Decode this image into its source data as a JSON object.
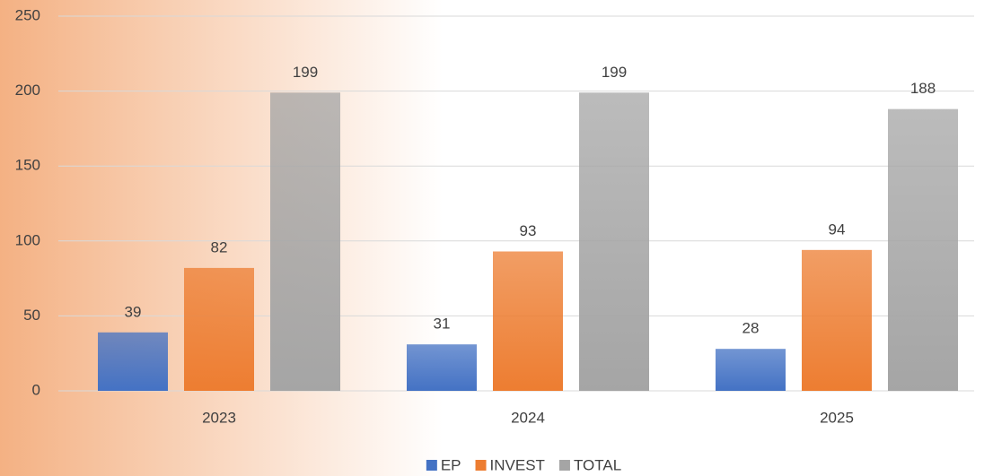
{
  "chart_data": {
    "type": "bar",
    "categories": [
      "2023",
      "2024",
      "2025"
    ],
    "series": [
      {
        "name": "EP",
        "color": "#4472c4",
        "values": [
          39,
          31,
          28
        ]
      },
      {
        "name": "INVEST",
        "color": "#ed7d31",
        "values": [
          82,
          93,
          94
        ]
      },
      {
        "name": "TOTAL",
        "color": "#a5a5a5",
        "values": [
          199,
          199,
          188
        ]
      }
    ],
    "ylim": [
      0,
      250
    ],
    "yticks": [
      0,
      50,
      100,
      150,
      200,
      250
    ],
    "grid": true,
    "legend": "bottom"
  }
}
